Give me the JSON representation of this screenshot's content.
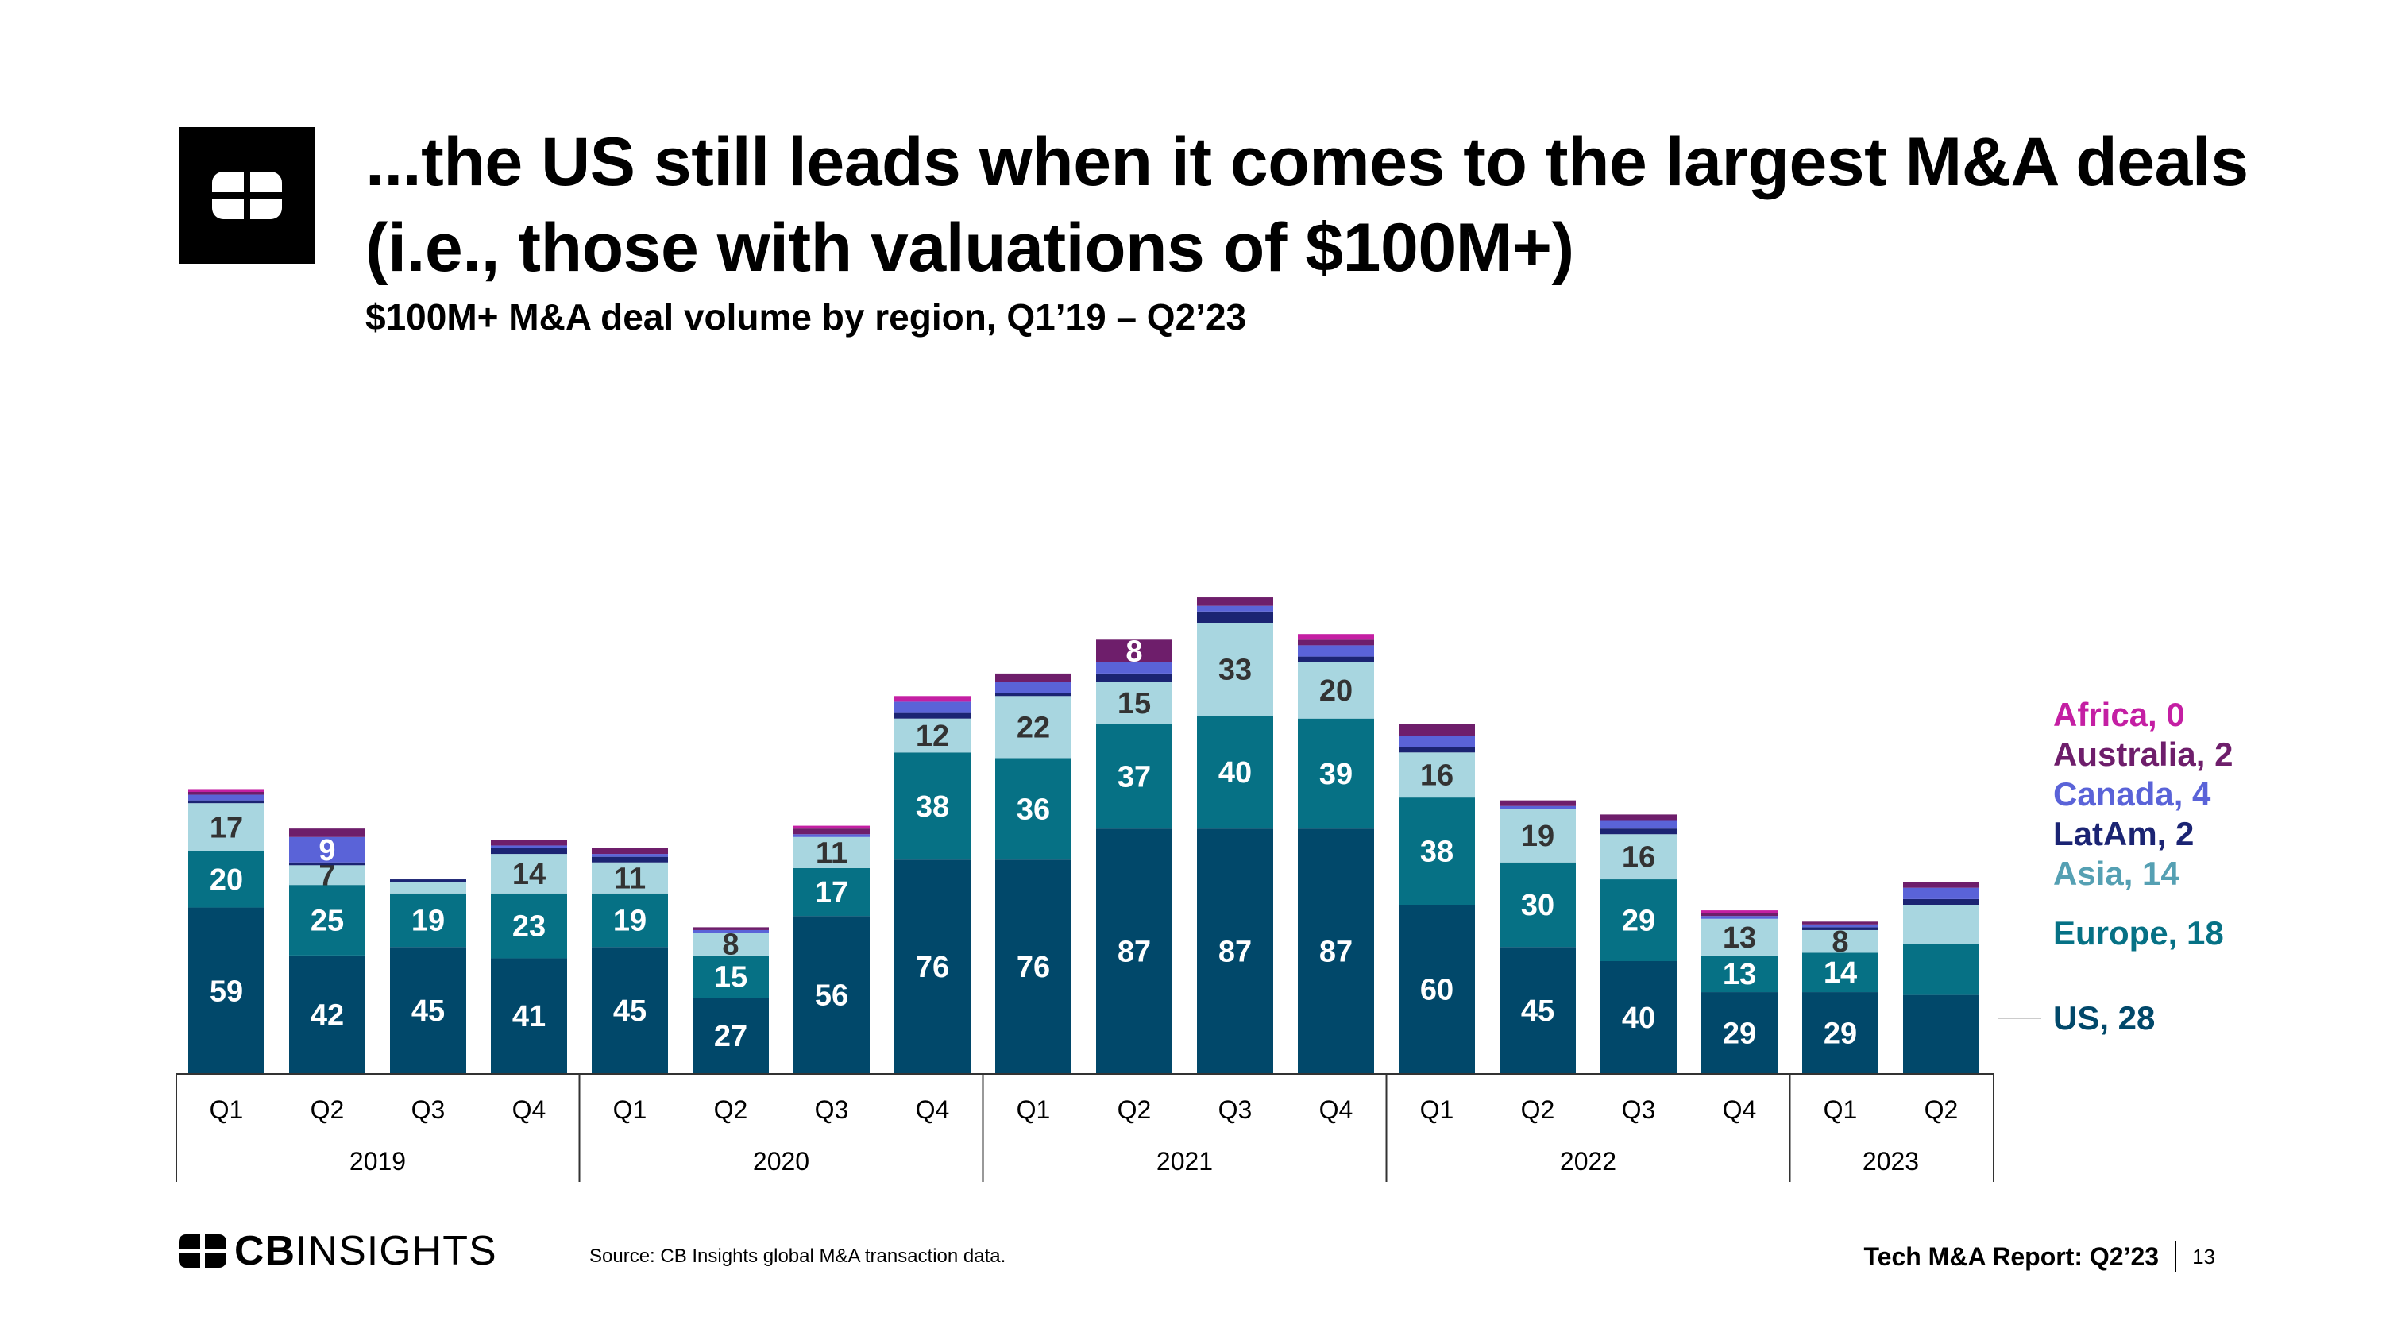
{
  "header": {
    "title_line1": "...the US still leads when it comes to the largest M&A deals",
    "title_line2": "(i.e., those with valuations of $100M+)",
    "subtitle": "$100M+ M&A deal volume by region, Q1’19 – Q2’23"
  },
  "footer": {
    "brand_bold": "CB",
    "brand_light": "INSIGHTS",
    "source": "Source: CB Insights global M&A transaction data.",
    "report": "Tech M&A Report: Q2’23",
    "page": "13"
  },
  "colors": {
    "US": "#01486A",
    "Europe": "#067185",
    "Asia": "#A8D6E0",
    "LatAm": "#1B2473",
    "Canada": "#5A63D8",
    "Australia": "#6E1E6B",
    "Africa": "#C41FA3",
    "asia_label": "#55A0B3"
  },
  "chart_data": {
    "type": "bar",
    "stacked": true,
    "title": "$100M+ M&A deal volume by region, Q1’19 – Q2’23",
    "categories": [
      "Q1",
      "Q2",
      "Q3",
      "Q4",
      "Q1",
      "Q2",
      "Q3",
      "Q4",
      "Q1",
      "Q2",
      "Q3",
      "Q4",
      "Q1",
      "Q2",
      "Q3",
      "Q4",
      "Q1",
      "Q2"
    ],
    "years": [
      {
        "label": "2019",
        "count": 4
      },
      {
        "label": "2020",
        "count": 4
      },
      {
        "label": "2021",
        "count": 4
      },
      {
        "label": "2022",
        "count": 4
      },
      {
        "label": "2023",
        "count": 2
      }
    ],
    "series": [
      {
        "name": "US",
        "values": [
          59,
          42,
          45,
          41,
          45,
          27,
          56,
          76,
          76,
          87,
          87,
          87,
          60,
          45,
          40,
          29,
          29,
          28
        ]
      },
      {
        "name": "Europe",
        "values": [
          20,
          25,
          19,
          23,
          19,
          15,
          17,
          38,
          36,
          37,
          40,
          39,
          38,
          30,
          29,
          13,
          14,
          18
        ]
      },
      {
        "name": "Asia",
        "values": [
          17,
          7,
          4,
          14,
          11,
          8,
          11,
          12,
          22,
          15,
          33,
          20,
          16,
          19,
          16,
          13,
          8,
          14
        ]
      },
      {
        "name": "LatAm",
        "values": [
          1,
          1,
          1,
          2,
          2,
          0,
          0,
          2,
          1,
          3,
          4,
          2,
          2,
          0,
          2,
          0,
          1,
          2
        ]
      },
      {
        "name": "Canada",
        "values": [
          2,
          9,
          0,
          1,
          1,
          1,
          1,
          4,
          4,
          4,
          2,
          4,
          4,
          1,
          3,
          1,
          1,
          4
        ]
      },
      {
        "name": "Australia",
        "values": [
          1,
          3,
          0,
          2,
          2,
          1,
          2,
          0,
          3,
          8,
          3,
          2,
          4,
          2,
          2,
          1,
          1,
          2
        ]
      },
      {
        "name": "Africa",
        "values": [
          1,
          0,
          0,
          0,
          0,
          0,
          1,
          2,
          0,
          0,
          0,
          2,
          0,
          0,
          0,
          1,
          0,
          0
        ]
      }
    ],
    "data_labels": [
      {
        "series": "US",
        "values": [
          "59",
          "42",
          "45",
          "41",
          "45",
          "27",
          "56",
          "76",
          "76",
          "87",
          "87",
          "87",
          "60",
          "45",
          "40",
          "29",
          "29",
          ""
        ]
      },
      {
        "series": "Europe",
        "values": [
          "20",
          "25",
          "19",
          "23",
          "19",
          "15",
          "17",
          "38",
          "36",
          "37",
          "40",
          "39",
          "38",
          "30",
          "29",
          "13",
          "14",
          ""
        ]
      },
      {
        "series": "Asia",
        "values": [
          "17",
          "7",
          "",
          "14",
          "11",
          "8",
          "11",
          "12",
          "22",
          "15",
          "33",
          "20",
          "16",
          "19",
          "16",
          "13",
          "8",
          ""
        ]
      },
      {
        "series": "Canada",
        "values": [
          "",
          "9",
          "",
          "",
          "",
          "",
          "",
          "",
          "",
          "",
          "",
          "",
          "",
          "",
          "",
          "",
          "",
          ""
        ]
      },
      {
        "series": "Australia",
        "values": [
          "",
          "",
          "",
          "",
          "",
          "",
          "",
          "",
          "",
          "8",
          "",
          "",
          "",
          "",
          "",
          "",
          "",
          ""
        ]
      }
    ],
    "legend": [
      {
        "series": "Africa",
        "text": "Africa, 0"
      },
      {
        "series": "Australia",
        "text": "Australia, 2"
      },
      {
        "series": "Canada",
        "text": "Canada, 4"
      },
      {
        "series": "LatAm",
        "text": "LatAm, 2"
      },
      {
        "series": "Asia",
        "text": "Asia, 14"
      },
      {
        "series": "Europe",
        "text": "Europe, 18"
      },
      {
        "series": "US",
        "text": "US, 28"
      }
    ],
    "legend_position": "right",
    "ylim": [
      0,
      165
    ],
    "grid": false
  }
}
